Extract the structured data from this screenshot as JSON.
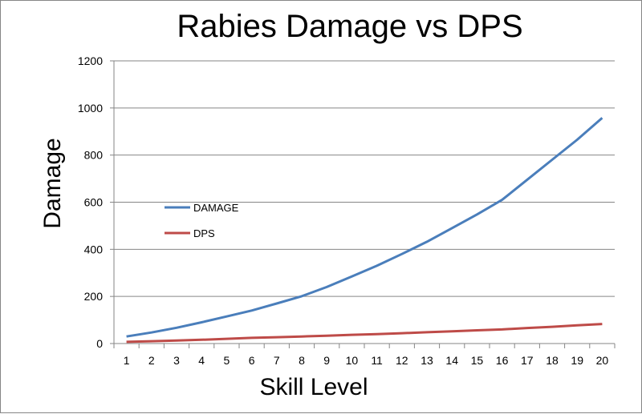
{
  "chart_data": {
    "type": "line",
    "title": "Rabies Damage vs DPS",
    "xlabel": "Skill Level",
    "ylabel": "Damage",
    "x": [
      1,
      2,
      3,
      4,
      5,
      6,
      7,
      8,
      9,
      10,
      11,
      12,
      13,
      14,
      15,
      16,
      17,
      18,
      19,
      20
    ],
    "ylim": [
      0,
      1200
    ],
    "yticks": [
      0,
      200,
      400,
      600,
      800,
      1000,
      1200
    ],
    "grid": "horizontal",
    "legend_position": "center-left",
    "series": [
      {
        "name": "DAMAGE",
        "color": "#4a7ebb",
        "values": [
          30,
          47,
          67,
          90,
          115,
          140,
          170,
          201,
          240,
          285,
          330,
          380,
          432,
          490,
          548,
          610,
          695,
          780,
          865,
          958
        ]
      },
      {
        "name": "DPS",
        "color": "#be4b48",
        "values": [
          7,
          10,
          13,
          16,
          20,
          24,
          27,
          30,
          33,
          37,
          40,
          44,
          48,
          52,
          56,
          60,
          66,
          71,
          77,
          83
        ]
      }
    ]
  }
}
